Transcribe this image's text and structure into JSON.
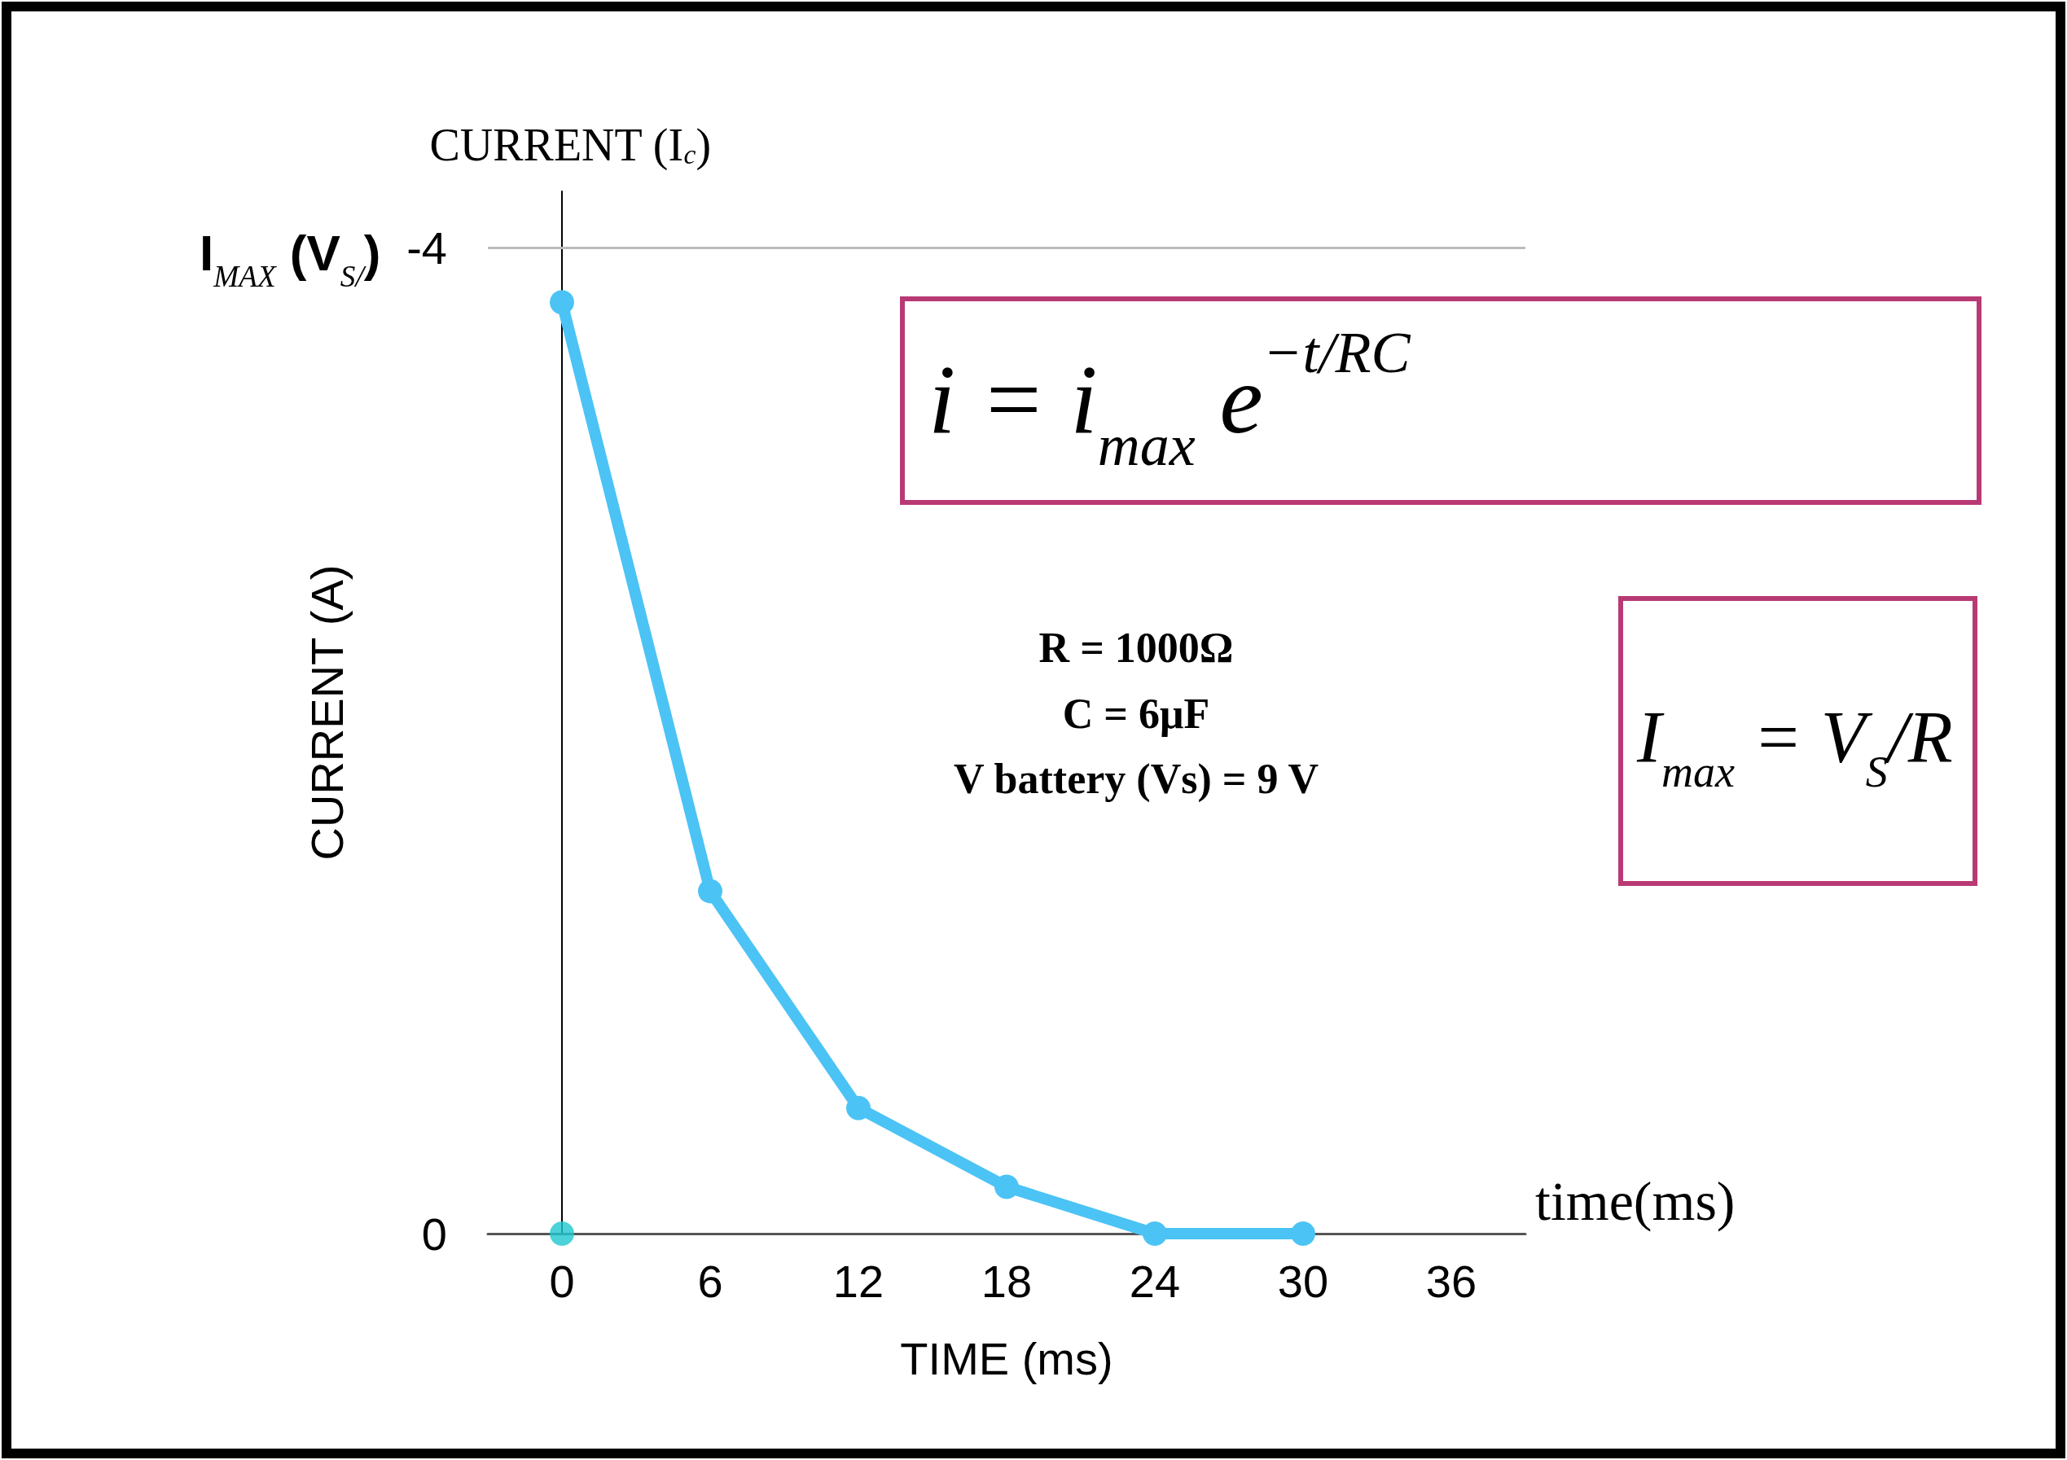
{
  "chart_data": {
    "type": "line",
    "title": "CURRENT (I$_{c}$)",
    "xlabel": "TIME (ms)",
    "ylabel": "CURRENT (A)",
    "x": [
      0,
      6,
      12,
      18,
      24,
      30
    ],
    "series": [
      {
        "color": "#4cc3f5",
        "values": [
          -3.78,
          -1.39,
          -0.51,
          -0.19,
          0,
          0
        ]
      },
      {
        "type": "scatter",
        "color": "#1ec8d0",
        "x": [
          0
        ],
        "values": [
          0
        ]
      }
    ],
    "xlim": [
      -3,
      39
    ],
    "xticks": [
      0,
      6,
      12,
      18,
      24,
      30,
      36
    ],
    "ylim": [
      0,
      -4.23
    ],
    "yticks": [
      0,
      -4
    ],
    "marker": "circle",
    "ref_lines": [
      {
        "axis": "y",
        "value": -4,
        "color": "#bbbbbb"
      }
    ],
    "annotations": [
      "I$_{MAX}$ (V$_{S/}$)",
      "i = i$_{max}$ e$^{−t/RC}$",
      "I$_{max}$ = V$_{S}$/R",
      "R = 1000Ω\nC = 6μF\nV battery (Vs) = 9 V",
      "time(ms)"
    ]
  }
}
